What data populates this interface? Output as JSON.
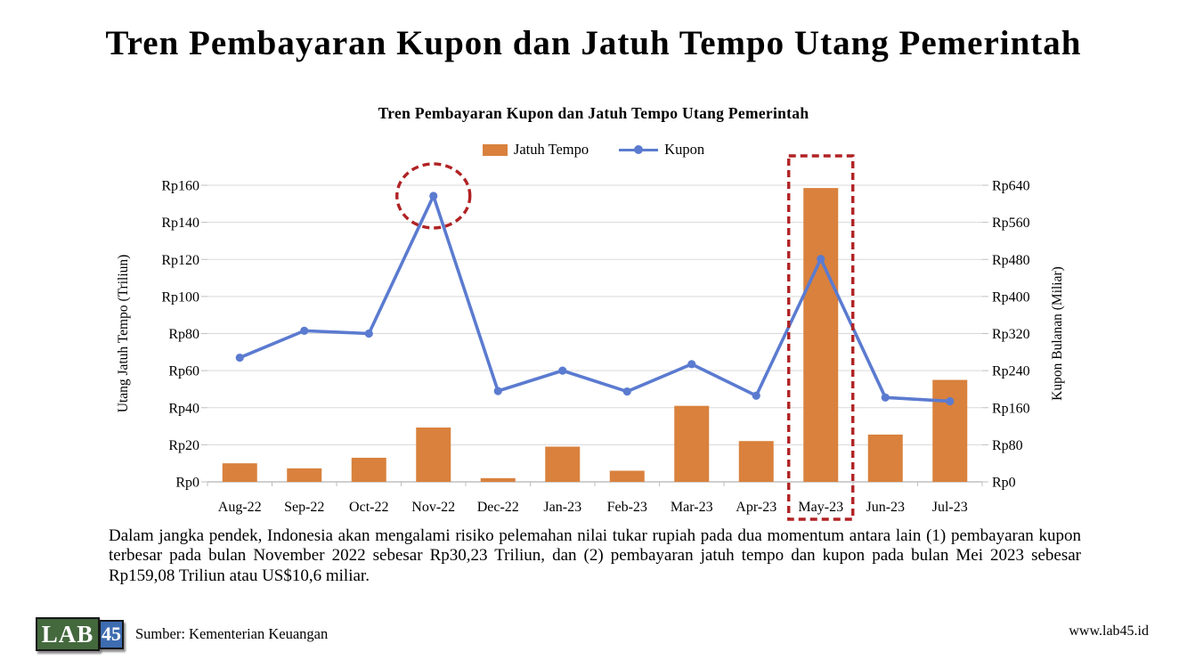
{
  "page_title": "Tren Pembayaran Kupon dan Jatuh Tempo Utang Pemerintah",
  "chart": {
    "title": "Tren Pembayaran Kupon dan Jatuh Tempo Utang Pemerintah",
    "legend": [
      {
        "label": "Jatuh Tempo",
        "marker": "bar-swatch"
      },
      {
        "label": "Kupon",
        "marker": "line-marker"
      }
    ]
  },
  "chart_data": {
    "type": "bar+line",
    "title": "Tren Pembayaran Kupon dan Jatuh Tempo Utang Pemerintah",
    "categories": [
      "Aug-22",
      "Sep-22",
      "Oct-22",
      "Nov-22",
      "Dec-22",
      "Jan-23",
      "Feb-23",
      "Mar-23",
      "Apr-23",
      "May-23",
      "Jun-23",
      "Jul-23"
    ],
    "series": [
      {
        "name": "Jatuh Tempo",
        "type": "bar",
        "axis": "left",
        "values": [
          10,
          7.3,
          13,
          29.3,
          2,
          19,
          6,
          41,
          22,
          158.5,
          25.5,
          55
        ]
      },
      {
        "name": "Kupon",
        "type": "line",
        "axis": "right",
        "values": [
          268,
          326,
          320,
          617,
          196,
          240,
          195,
          254,
          186,
          481,
          182,
          174
        ]
      }
    ],
    "left_axis": {
      "label": "Utang Jatuh Tempo (Triliun)",
      "max": 160,
      "ticks": [
        "Rp0",
        "Rp20",
        "Rp40",
        "Rp60",
        "Rp80",
        "Rp100",
        "Rp120",
        "Rp140",
        "Rp160"
      ]
    },
    "right_axis": {
      "label": "Kupon Bulanan (Miliar)",
      "max": 640,
      "ticks": [
        "Rp0",
        "Rp80",
        "Rp160",
        "Rp240",
        "Rp320",
        "Rp400",
        "Rp480",
        "Rp560",
        "Rp640"
      ]
    },
    "annotations": [
      {
        "shape": "ellipse",
        "category": "Nov-22",
        "attach": "line-point"
      },
      {
        "shape": "rect",
        "category": "May-23",
        "attach": "full-column"
      }
    ],
    "grid": true,
    "legend_position": "top",
    "colors": {
      "bar": "#D9813D",
      "line": "#5B7BD0",
      "annotation": "#B12224",
      "grid": "#D9D9D9",
      "axis": "#BFBFBF",
      "text": "#000000"
    }
  },
  "note": "Dalam jangka pendek, Indonesia akan mengalami risiko pelemahan nilai tukar rupiah pada dua momentum antara lain (1) pembayaran kupon terbesar pada bulan November 2022 sebesar Rp30,23 Triliun, dan (2) pembayaran jatuh tempo dan kupon pada bulan Mei 2023 sebesar Rp159,08 Triliun atau US$10,6 miliar.",
  "footer": {
    "logo": {
      "part1": "LAB",
      "part2": "45",
      "green": "#44693D",
      "blue": "#3E6CB0"
    },
    "source": "Sumber: Kementerian Keuangan",
    "website": "www.lab45.id"
  }
}
